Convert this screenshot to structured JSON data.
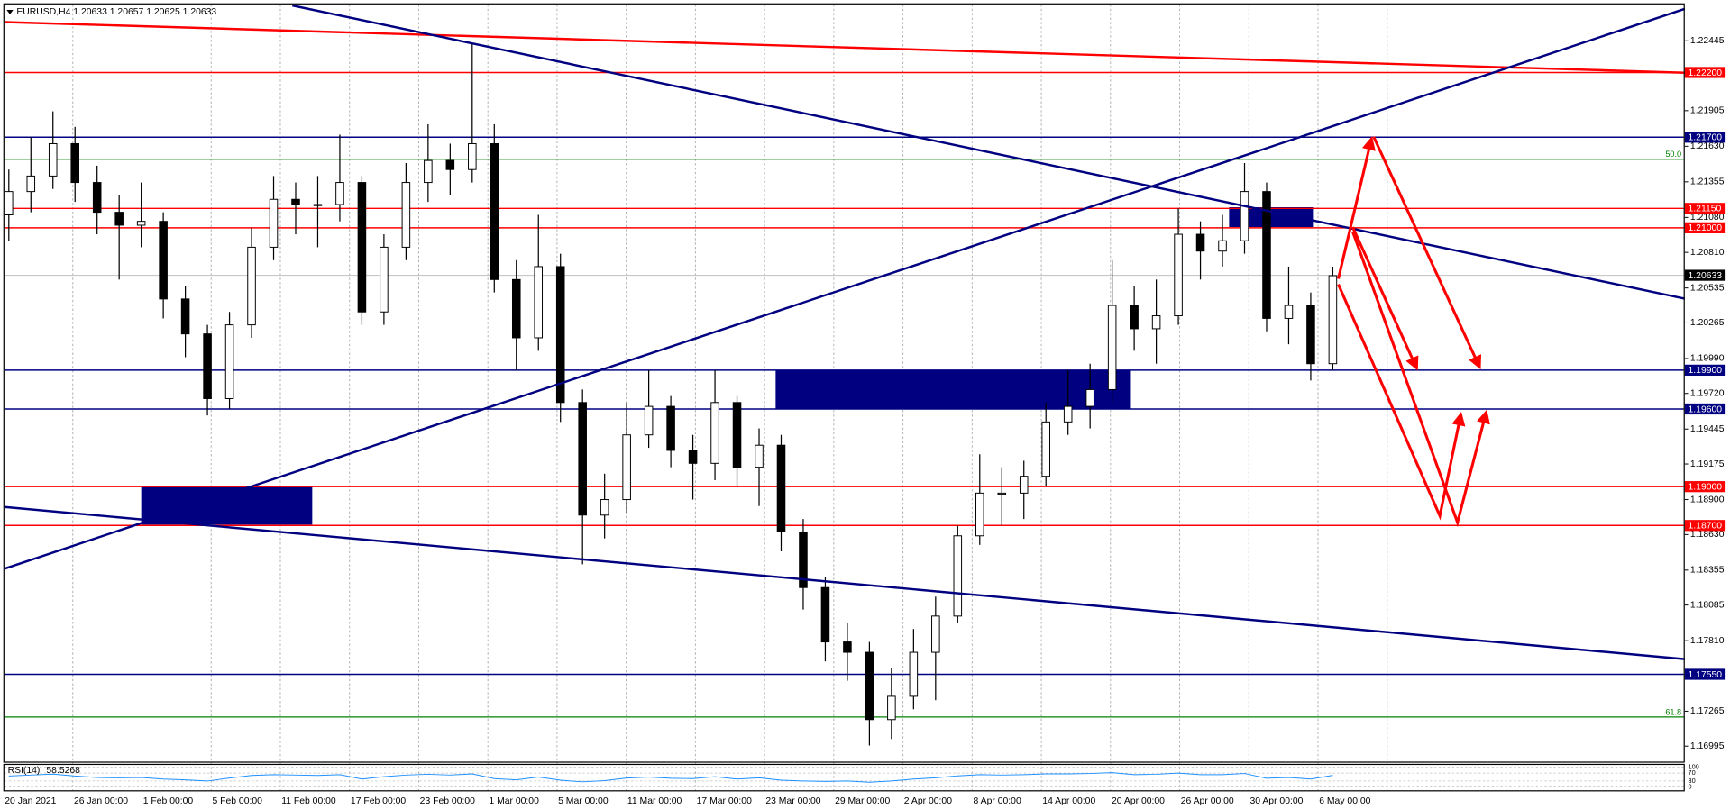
{
  "chart_data": {
    "type": "candlestick",
    "header": "EURUSD,H4  1.20633 1.20657 1.20625 1.20633",
    "ylim": [
      1.16884,
      1.22726
    ],
    "yticks": [
      1.22445,
      1.21905,
      {
        "value": 1.2163,
        "label": "1.21630"
      },
      1.21355,
      {
        "value": 1.2108,
        "label": "1.21080"
      },
      {
        "value": 1.2081,
        "label": "1.20810"
      },
      1.20535,
      1.20265,
      {
        "value": 1.1999,
        "label": "1.19990"
      },
      {
        "value": 1.1972,
        "label": "1.19720"
      },
      1.19445,
      1.19175,
      {
        "value": 1.189,
        "label": "1.18900"
      },
      {
        "value": 1.1863,
        "label": "1.18630"
      },
      1.18355,
      1.18085,
      {
        "value": 1.1781,
        "label": "1.17810"
      },
      1.17265,
      1.16995
    ],
    "x_tick_labels": [
      "20 Jan 2021",
      "26 Jan 00:00",
      "1 Feb 00:00",
      "5 Feb 00:00",
      "11 Feb 00:00",
      "17 Feb 00:00",
      "23 Feb 00:00",
      "1 Mar 00:00",
      "5 Mar 00:00",
      "11 Mar 00:00",
      "17 Mar 00:00",
      "23 Mar 00:00",
      "29 Mar 00:00",
      "2 Apr 00:00",
      "8 Apr 00:00",
      "14 Apr 00:00",
      "20 Apr 00:00",
      "26 Apr 00:00",
      "30 Apr 00:00",
      "6 May 00:00"
    ],
    "open": [
      1.211,
      1.2128,
      1.214,
      1.2165,
      1.2135,
      1.2112,
      1.2102,
      1.2105,
      1.2045,
      1.2018,
      1.1968,
      1.2025,
      1.2085,
      1.2122,
      1.2118,
      1.2118,
      1.2135,
      1.2035,
      1.2085,
      1.2135,
      1.2152,
      1.2145,
      1.2165,
      1.206,
      1.2015,
      1.207,
      1.1965,
      1.1878,
      1.189,
      1.194,
      1.1962,
      1.1928,
      1.1918,
      1.1965,
      1.1915,
      1.1932,
      1.1865,
      1.1822,
      1.178,
      1.1772,
      1.172,
      1.1738,
      1.1772,
      1.18,
      1.1862,
      1.1895,
      1.1895,
      1.1908,
      1.195,
      1.1962,
      1.1975,
      1.204,
      1.2022,
      1.2032,
      1.2095,
      1.2082,
      1.209,
      1.2128,
      1.203,
      1.204,
      1.1995
    ],
    "high": [
      1.2145,
      1.217,
      1.219,
      1.2178,
      1.2148,
      1.2125,
      1.2135,
      1.2112,
      1.2055,
      1.2025,
      1.2035,
      1.21,
      1.214,
      1.2135,
      1.214,
      1.2172,
      1.214,
      1.2095,
      1.215,
      1.218,
      1.2165,
      1.2243,
      1.218,
      1.2075,
      1.211,
      1.208,
      1.1975,
      1.191,
      1.1965,
      1.199,
      1.197,
      1.194,
      1.199,
      1.197,
      1.1945,
      1.194,
      1.1875,
      1.183,
      1.1795,
      1.178,
      1.176,
      1.179,
      1.1815,
      1.187,
      1.1925,
      1.1915,
      1.192,
      1.1965,
      1.199,
      1.1995,
      1.2075,
      1.2055,
      1.206,
      1.2115,
      1.2105,
      1.211,
      1.215,
      1.2135,
      1.207,
      1.205,
      1.207
    ],
    "low": [
      1.209,
      1.2112,
      1.213,
      1.212,
      1.2095,
      1.206,
      1.2085,
      1.203,
      1.2,
      1.1955,
      1.196,
      1.2015,
      1.2075,
      1.2095,
      1.2085,
      1.2105,
      1.2025,
      1.2025,
      1.2075,
      1.212,
      1.2125,
      1.2135,
      1.205,
      1.199,
      1.2005,
      1.195,
      1.184,
      1.186,
      1.188,
      1.193,
      1.1915,
      1.189,
      1.1905,
      1.19,
      1.1885,
      1.185,
      1.1805,
      1.1765,
      1.175,
      1.17,
      1.1705,
      1.1728,
      1.1735,
      1.1795,
      1.1855,
      1.187,
      1.1875,
      1.19,
      1.194,
      1.1945,
      1.1965,
      1.2005,
      1.1995,
      1.2025,
      1.206,
      1.207,
      1.208,
      1.202,
      1.201,
      1.1982,
      1.199
    ],
    "close": [
      1.2128,
      1.214,
      1.2165,
      1.2135,
      1.2112,
      1.2102,
      1.2105,
      1.2045,
      1.2018,
      1.1968,
      1.2025,
      1.2085,
      1.2122,
      1.2118,
      1.2118,
      1.2135,
      1.2035,
      1.2085,
      1.2135,
      1.2152,
      1.2145,
      1.2165,
      1.206,
      1.2015,
      1.207,
      1.1965,
      1.1878,
      1.189,
      1.194,
      1.1962,
      1.1928,
      1.1918,
      1.1965,
      1.1915,
      1.1932,
      1.1865,
      1.1822,
      1.178,
      1.1772,
      1.172,
      1.1738,
      1.1772,
      1.18,
      1.1862,
      1.1895,
      1.1895,
      1.1908,
      1.195,
      1.1962,
      1.1975,
      1.204,
      1.2022,
      1.2032,
      1.2095,
      1.2082,
      1.209,
      1.2128,
      1.203,
      1.204,
      1.1995,
      1.2063
    ],
    "color": "#000000",
    "current_price": 1.20633,
    "levels": [
      {
        "value": 1.222,
        "label": "1.22200",
        "color": "#ff0000"
      },
      {
        "value": 1.217,
        "label": "1.21700",
        "color": "#000080"
      },
      {
        "value": 1.2115,
        "label": "1.21150",
        "color": "#ff0000"
      },
      {
        "value": 1.21,
        "label": "1.21000",
        "color": "#ff0000"
      },
      {
        "value": 1.199,
        "label": "1.19900",
        "color": "#000080"
      },
      {
        "value": 1.196,
        "label": "1.19600",
        "color": "#000080"
      },
      {
        "value": 1.19,
        "label": "1.19000",
        "color": "#ff0000"
      },
      {
        "value": 1.187,
        "label": "1.18700",
        "color": "#ff0000"
      },
      {
        "value": 1.1755,
        "label": "1.17550",
        "color": "#000080"
      }
    ],
    "fib_levels": [
      {
        "name": "50.0",
        "value": 1.2153,
        "color": "#008000"
      },
      {
        "name": "61.8",
        "value": 1.1722,
        "color": "#008000"
      }
    ],
    "rsi": {
      "name": "RSI(14)",
      "color": "#1e90ff",
      "ylim": [
        0,
        100
      ],
      "yticks": [
        100,
        70,
        30,
        0
      ],
      "values": [
        55,
        60,
        65,
        55,
        48,
        46,
        48,
        40,
        36,
        30,
        45,
        58,
        62,
        60,
        58,
        62,
        40,
        52,
        60,
        64,
        60,
        66,
        42,
        36,
        50,
        34,
        26,
        32,
        45,
        50,
        44,
        42,
        52,
        40,
        46,
        34,
        30,
        28,
        30,
        24,
        30,
        40,
        46,
        56,
        62,
        60,
        62,
        66,
        66,
        68,
        72,
        62,
        64,
        70,
        62,
        62,
        68,
        44,
        48,
        40,
        58.5268
      ]
    }
  }
}
